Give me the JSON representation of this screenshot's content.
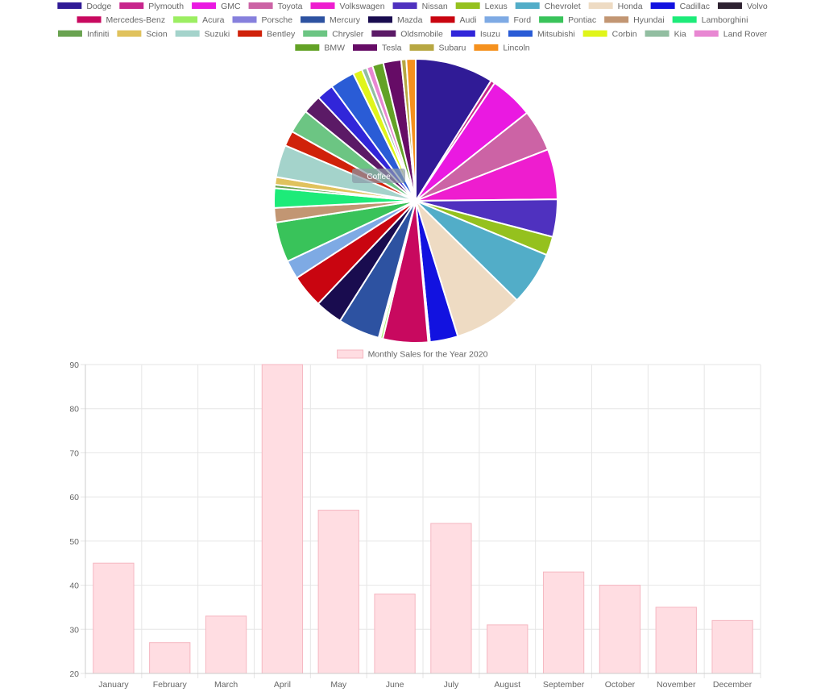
{
  "chart_data": [
    {
      "type": "pie",
      "title": "",
      "legend_position": "top",
      "categories": [
        "Dodge",
        "Plymouth",
        "GMC",
        "Toyota",
        "Volkswagen",
        "Nissan",
        "Lexus",
        "Chevrolet",
        "Honda",
        "Cadillac",
        "Volvo",
        "Mercedes-Benz",
        "Acura",
        "Porsche",
        "Mercury",
        "Mazda",
        "Audi",
        "Ford",
        "Pontiac",
        "Hyundai",
        "Lamborghini",
        "Infiniti",
        "Scion",
        "Suzuki",
        "Bentley",
        "Chrysler",
        "Oldsmobile",
        "Isuzu",
        "Mitsubishi",
        "Corbin",
        "Kia",
        "Land Rover",
        "BMW",
        "Tesla",
        "Subaru",
        "Lincoln"
      ],
      "values": [
        9.2,
        0.5,
        5.1,
        4.9,
        5.9,
        4.4,
        2.2,
        6.3,
        8.1,
        3.3,
        0.2,
        5.3,
        0.3,
        0.2,
        4.9,
        3.2,
        3.9,
        2.2,
        4.7,
        1.7,
        2.3,
        0.4,
        0.9,
        3.8,
        1.8,
        2.8,
        2.2,
        2.0,
        2.9,
        1.1,
        0.6,
        0.7,
        1.3,
        2.1,
        0.6,
        1.1
      ],
      "colors": [
        "#301b96",
        "#c8268c",
        "#ea19e1",
        "#cc63a5",
        "#ee1dcf",
        "#4f31bf",
        "#95c11e",
        "#52adc8",
        "#eedbc3",
        "#1212e0",
        "#2e2231",
        "#c8095f",
        "#9cee62",
        "#8680dd",
        "#2d52a1",
        "#190c4f",
        "#c90510",
        "#7eaae4",
        "#39c35a",
        "#c29673",
        "#1deb79",
        "#6aa351",
        "#e0c25d",
        "#a4d3cb",
        "#d0220a",
        "#6cc583",
        "#5b1a66",
        "#3126d9",
        "#2a5cd6",
        "#e0f51a",
        "#92bea1",
        "#e887d2",
        "#63a226",
        "#660c66",
        "#b7a742",
        "#f5911e"
      ],
      "logo_text": "Coffee"
    },
    {
      "type": "bar",
      "title": "",
      "series": [
        {
          "name": "Monthly Sales for the Year 2020",
          "values": [
            45,
            27,
            33,
            90,
            57,
            38,
            54,
            31,
            43,
            40,
            35,
            32
          ]
        }
      ],
      "categories": [
        "January",
        "February",
        "March",
        "April",
        "May",
        "June",
        "July",
        "August",
        "September",
        "October",
        "November",
        "December"
      ],
      "ylim": [
        20,
        90
      ],
      "yticks": [
        20,
        30,
        40,
        50,
        60,
        70,
        80,
        90
      ],
      "grid": true,
      "legend_position": "top",
      "fill_color": "#ffdde2",
      "border_color": "#f5b7c1"
    }
  ]
}
